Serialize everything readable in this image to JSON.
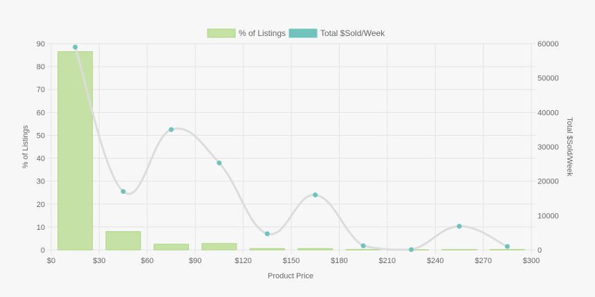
{
  "chart_data": {
    "type": "bar",
    "xlabel": "Product Price",
    "ylabel_left": "% of Listings",
    "ylabel_right": "Total $Sold/Week",
    "x_ticks": [
      "$0",
      "$30",
      "$60",
      "$90",
      "$120",
      "$150",
      "$180",
      "$210",
      "$240",
      "$270",
      "$300"
    ],
    "x_range": [
      0,
      300
    ],
    "ylim_left": [
      0,
      90
    ],
    "ylim_right": [
      0,
      60000
    ],
    "y_ticks_left": [
      "0",
      "10",
      "20",
      "30",
      "40",
      "50",
      "60",
      "70",
      "80",
      "90"
    ],
    "y_ticks_right": [
      "0",
      "10000",
      "20000",
      "30000",
      "40000",
      "50000",
      "60000"
    ],
    "grid": true,
    "legend_position": "top",
    "x": [
      15,
      45,
      75,
      105,
      135,
      165,
      195,
      225,
      255,
      285
    ],
    "series": [
      {
        "name": "% of Listings",
        "kind": "bar",
        "axis": "left",
        "color": "#c5e1a5",
        "border_color": "#aed581",
        "values": [
          86.5,
          8,
          2.5,
          2.8,
          0.6,
          0.6,
          0.2,
          0.1,
          0.2,
          0.2
        ]
      },
      {
        "name": "Total $Sold/Week",
        "kind": "line",
        "axis": "right",
        "color": "#dcdcdc",
        "point_color": "#6fc3bd",
        "values": [
          59000,
          17000,
          35000,
          25300,
          4700,
          16000,
          1200,
          100,
          6900,
          1000
        ]
      }
    ]
  }
}
